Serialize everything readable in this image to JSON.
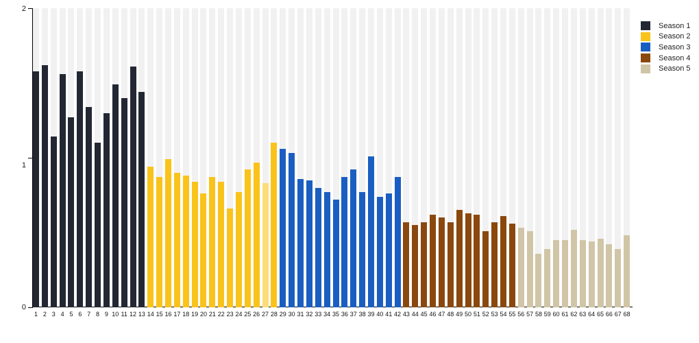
{
  "chart_data": {
    "type": "bar",
    "title": "",
    "xlabel": "",
    "ylabel": "",
    "y_axis": {
      "range": [
        0,
        2
      ],
      "ticks": [
        "0",
        "1",
        "2"
      ]
    },
    "grid": "vertical-stripes",
    "stripe_color": "#f1f1f1",
    "legend": {
      "position": "top-right",
      "items": [
        {
          "label": "Season 1",
          "color": "#222733"
        },
        {
          "label": "Season 2",
          "color": "#f9c31b"
        },
        {
          "label": "Season 3",
          "color": "#1a5ec1"
        },
        {
          "label": "Season 4",
          "color": "#8a480f"
        },
        {
          "label": "Season 5",
          "color": "#d0c5a6"
        }
      ]
    },
    "seasons": [
      {
        "name": "Season 1",
        "color": "#222733",
        "episode_range": [
          1,
          13
        ]
      },
      {
        "name": "Season 2",
        "color": "#f9c31b",
        "episode_range": [
          14,
          28
        ]
      },
      {
        "name": "Season 3",
        "color": "#1a5ec1",
        "episode_range": [
          29,
          42
        ]
      },
      {
        "name": "Season 4",
        "color": "#8a480f",
        "episode_range": [
          43,
          55
        ]
      },
      {
        "name": "Season 5",
        "color": "#d0c5a6",
        "episode_range": [
          56,
          68
        ]
      }
    ],
    "bars": [
      {
        "n": 1,
        "v": 1.58,
        "s": 1
      },
      {
        "n": 2,
        "v": 1.62,
        "s": 1
      },
      {
        "n": 3,
        "v": 1.14,
        "s": 1
      },
      {
        "n": 4,
        "v": 1.56,
        "s": 1
      },
      {
        "n": 5,
        "v": 1.27,
        "s": 1
      },
      {
        "n": 6,
        "v": 1.58,
        "s": 1
      },
      {
        "n": 7,
        "v": 1.34,
        "s": 1
      },
      {
        "n": 8,
        "v": 1.1,
        "s": 1
      },
      {
        "n": 9,
        "v": 1.3,
        "s": 1
      },
      {
        "n": 10,
        "v": 1.49,
        "s": 1
      },
      {
        "n": 11,
        "v": 1.4,
        "s": 1
      },
      {
        "n": 12,
        "v": 1.61,
        "s": 1
      },
      {
        "n": 13,
        "v": 1.44,
        "s": 1
      },
      {
        "n": 14,
        "v": 0.94,
        "s": 2
      },
      {
        "n": 15,
        "v": 0.87,
        "s": 2
      },
      {
        "n": 16,
        "v": 0.99,
        "s": 2
      },
      {
        "n": 17,
        "v": 0.9,
        "s": 2
      },
      {
        "n": 18,
        "v": 0.88,
        "s": 2
      },
      {
        "n": 19,
        "v": 0.84,
        "s": 2
      },
      {
        "n": 20,
        "v": 0.76,
        "s": 2
      },
      {
        "n": 21,
        "v": 0.87,
        "s": 2
      },
      {
        "n": 22,
        "v": 0.84,
        "s": 2
      },
      {
        "n": 23,
        "v": 0.66,
        "s": 2
      },
      {
        "n": 24,
        "v": 0.77,
        "s": 2
      },
      {
        "n": 25,
        "v": 0.92,
        "s": 2
      },
      {
        "n": 26,
        "v": 0.97,
        "s": 2
      },
      {
        "n": 27,
        "v": 0.83,
        "s": 2,
        "color": "#fbdd79"
      },
      {
        "n": 28,
        "v": 1.1,
        "s": 2
      },
      {
        "n": 29,
        "v": 1.06,
        "s": 3
      },
      {
        "n": 30,
        "v": 1.03,
        "s": 3
      },
      {
        "n": 31,
        "v": 0.86,
        "s": 3
      },
      {
        "n": 32,
        "v": 0.85,
        "s": 3
      },
      {
        "n": 33,
        "v": 0.8,
        "s": 3
      },
      {
        "n": 34,
        "v": 0.77,
        "s": 3
      },
      {
        "n": 35,
        "v": 0.72,
        "s": 3
      },
      {
        "n": 36,
        "v": 0.87,
        "s": 3
      },
      {
        "n": 37,
        "v": 0.92,
        "s": 3
      },
      {
        "n": 38,
        "v": 0.77,
        "s": 3
      },
      {
        "n": 39,
        "v": 1.01,
        "s": 3
      },
      {
        "n": 40,
        "v": 0.74,
        "s": 3
      },
      {
        "n": 41,
        "v": 0.76,
        "s": 3
      },
      {
        "n": 42,
        "v": 0.87,
        "s": 3
      },
      {
        "n": 43,
        "v": 0.57,
        "s": 4
      },
      {
        "n": 44,
        "v": 0.55,
        "s": 4
      },
      {
        "n": 45,
        "v": 0.57,
        "s": 4
      },
      {
        "n": 46,
        "v": 0.62,
        "s": 4
      },
      {
        "n": 47,
        "v": 0.6,
        "s": 4
      },
      {
        "n": 48,
        "v": 0.57,
        "s": 4
      },
      {
        "n": 49,
        "v": 0.65,
        "s": 4
      },
      {
        "n": 50,
        "v": 0.63,
        "s": 4
      },
      {
        "n": 51,
        "v": 0.62,
        "s": 4
      },
      {
        "n": 52,
        "v": 0.51,
        "s": 4
      },
      {
        "n": 53,
        "v": 0.57,
        "s": 4
      },
      {
        "n": 54,
        "v": 0.61,
        "s": 4
      },
      {
        "n": 55,
        "v": 0.56,
        "s": 4
      },
      {
        "n": 56,
        "v": 0.53,
        "s": 5
      },
      {
        "n": 57,
        "v": 0.51,
        "s": 5
      },
      {
        "n": 58,
        "v": 0.36,
        "s": 5
      },
      {
        "n": 59,
        "v": 0.39,
        "s": 5
      },
      {
        "n": 60,
        "v": 0.45,
        "s": 5
      },
      {
        "n": 61,
        "v": 0.45,
        "s": 5
      },
      {
        "n": 62,
        "v": 0.52,
        "s": 5
      },
      {
        "n": 63,
        "v": 0.45,
        "s": 5
      },
      {
        "n": 64,
        "v": 0.44,
        "s": 5
      },
      {
        "n": 65,
        "v": 0.46,
        "s": 5
      },
      {
        "n": 66,
        "v": 0.42,
        "s": 5
      },
      {
        "n": 67,
        "v": 0.39,
        "s": 5
      },
      {
        "n": 68,
        "v": 0.48,
        "s": 5
      }
    ]
  }
}
